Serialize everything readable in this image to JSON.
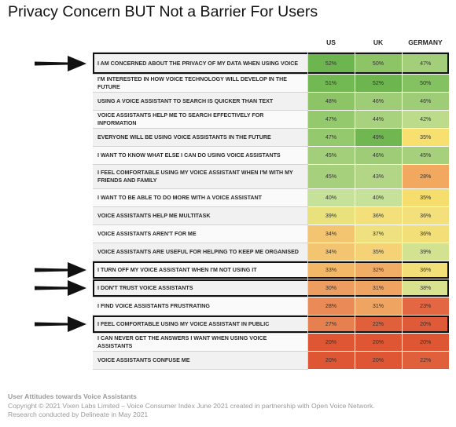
{
  "title": "Privacy Concern BUT Not a Barrier For Users",
  "chart_data": {
    "type": "table",
    "title": "Privacy Concern BUT Not a Barrier For Users",
    "columns": [
      "US",
      "UK",
      "GERMANY"
    ],
    "rows": [
      {
        "label": "I AM CONCERNED ABOUT THE PRIVACY OF MY DATA WHEN USING VOICE",
        "values": [
          "52%",
          "50%",
          "47%"
        ],
        "colors": [
          "#6db54f",
          "#8cc466",
          "#a3cf7a"
        ],
        "highlighted": true
      },
      {
        "label": "I'M INTERESTED IN HOW VOICE TECHNOLOGY WILL DEVELOP IN THE FUTURE",
        "values": [
          "51%",
          "52%",
          "50%"
        ],
        "colors": [
          "#72b853",
          "#6db54f",
          "#84c160"
        ],
        "highlighted": false
      },
      {
        "label": "USING A VOICE ASSISTANT TO SEARCH IS QUICKER THAN TEXT",
        "values": [
          "48%",
          "46%",
          "46%"
        ],
        "colors": [
          "#8cc466",
          "#9fcd77",
          "#9fcd77"
        ],
        "highlighted": false
      },
      {
        "label": "VOICE ASSISTANTS HELP ME TO SEARCH EFFECTIVELY FOR INFORMATION",
        "values": [
          "47%",
          "44%",
          "42%"
        ],
        "colors": [
          "#95c96e",
          "#a9d27e",
          "#bcdc8c"
        ],
        "highlighted": false
      },
      {
        "label": "EVERYONE WILL BE USING VOICE ASSISTANTS IN THE FUTURE",
        "values": [
          "47%",
          "49%",
          "35%"
        ],
        "colors": [
          "#95c96e",
          "#70b752",
          "#f7e070"
        ],
        "highlighted": false
      },
      {
        "label": "I WANT TO KNOW WHAT ELSE I CAN DO USING VOICE ASSISTANTS",
        "values": [
          "45%",
          "46%",
          "45%"
        ],
        "colors": [
          "#a3cf7a",
          "#9fcd77",
          "#a6d07c"
        ],
        "highlighted": false
      },
      {
        "label": "I FEEL COMFORTABLE USING MY VOICE ASSISTANT WHEN I'M WITH MY FRIENDS AND FAMILY",
        "values": [
          "45%",
          "43%",
          "28%"
        ],
        "colors": [
          "#a6d07c",
          "#b2d685",
          "#f2a85f"
        ],
        "highlighted": false
      },
      {
        "label": "I WANT TO BE ABLE TO DO MORE WITH A VOICE ASSISTANT",
        "values": [
          "40%",
          "40%",
          "35%"
        ],
        "colors": [
          "#c6e19a",
          "#c6e19a",
          "#f5dd6e"
        ],
        "highlighted": false
      },
      {
        "label": "VOICE ASSISTANTS HELP ME MULTITASK",
        "values": [
          "39%",
          "36%",
          "36%"
        ],
        "colors": [
          "#e9e27c",
          "#f4e07a",
          "#f4e07a"
        ],
        "highlighted": false
      },
      {
        "label": "VOICE ASSISTANTS AREN'T FOR ME",
        "values": [
          "34%",
          "37%",
          "36%"
        ],
        "colors": [
          "#f4c571",
          "#efe17f",
          "#f3df78"
        ],
        "highlighted": false
      },
      {
        "label": "VOICE ASSISTANTS ARE USEFUL FOR HELPING TO KEEP ME ORGANISED",
        "values": [
          "34%",
          "35%",
          "39%"
        ],
        "colors": [
          "#f4c571",
          "#f4d275",
          "#d2e291"
        ],
        "highlighted": false
      },
      {
        "label": "I TURN OFF MY VOICE ASSISTANT WHEN I'M NOT USING IT",
        "values": [
          "33%",
          "32%",
          "36%"
        ],
        "colors": [
          "#f2b868",
          "#f1ac66",
          "#f3df78"
        ],
        "highlighted": true
      },
      {
        "label": "I DON'T TRUST VOICE ASSISTANTS",
        "values": [
          "30%",
          "31%",
          "38%"
        ],
        "colors": [
          "#ee9d60",
          "#f0a462",
          "#d9e38f"
        ],
        "highlighted": true
      },
      {
        "label": "I FIND VOICE ASSISTANTS FRUSTRATING",
        "values": [
          "28%",
          "31%",
          "23%"
        ],
        "colors": [
          "#ea8a57",
          "#f0a462",
          "#e36743"
        ],
        "highlighted": false
      },
      {
        "label": "I FEEL COMFORTABLE USING MY VOICE ASSISTANT IN PUBLIC",
        "values": [
          "27%",
          "22%",
          "20%"
        ],
        "colors": [
          "#e6804f",
          "#e0603c",
          "#df5a38"
        ],
        "highlighted": true
      },
      {
        "label": "I CAN NEVER GET THE ANSWERS I WANT WHEN USING VOICE ASSISTANTS",
        "values": [
          "20%",
          "20%",
          "20%"
        ],
        "colors": [
          "#de5634",
          "#de5634",
          "#de5634"
        ],
        "highlighted": false
      },
      {
        "label": "VOICE ASSISTANTS CONFUSE ME",
        "values": [
          "20%",
          "20%",
          "22%"
        ],
        "colors": [
          "#de5634",
          "#de5634",
          "#e0603c"
        ],
        "highlighted": false
      }
    ]
  },
  "footer": {
    "source_title": "User Attitudes towards Voice Assistants",
    "copyright": "Copyright © 2021 Vixen Labs Limited – Voice Consumer Index June 2021 created in partnership with Open Voice Network.",
    "research": "Research conducted by Delineate in May 2021"
  },
  "arrow_color": "#111111"
}
